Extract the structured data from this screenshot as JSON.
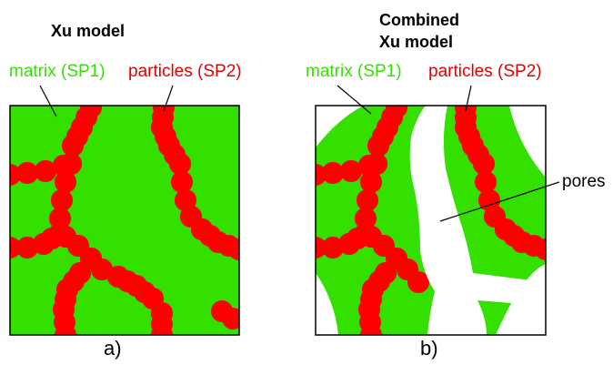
{
  "panels": [
    {
      "title_lines": [
        "Xu model"
      ],
      "matrix_label": "matrix (SP1)",
      "particles_label": "particles (SP2)",
      "caption": "a)"
    },
    {
      "title_lines": [
        "Combined",
        "Xu model"
      ],
      "matrix_label": "matrix (SP1)",
      "particles_label": "particles (SP2)",
      "pores_label": "pores",
      "caption": "b)"
    }
  ],
  "colors": {
    "matrix": "#33e000",
    "particles": "#ff0000",
    "pores": "#ffffff",
    "outline": "#000000"
  }
}
